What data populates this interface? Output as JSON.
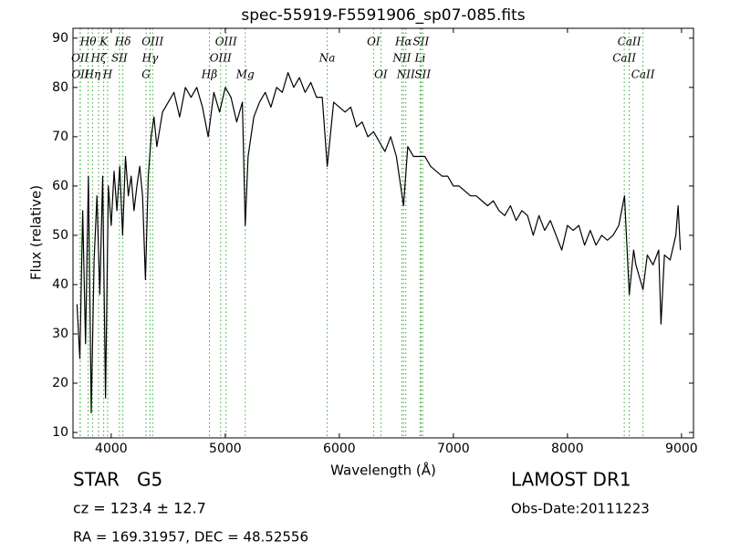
{
  "chart_data": {
    "type": "line",
    "title": "spec-55919-F5591906_sp07-085.fits",
    "x_label": "Wavelength (Å)",
    "y_label": "Flux (relative)",
    "xlim": [
      3665,
      9105
    ],
    "ylim": [
      8.9,
      92.0
    ],
    "xticks": [
      4000,
      5000,
      6000,
      7000,
      8000,
      9000
    ],
    "yticks": [
      10,
      20,
      30,
      40,
      50,
      60,
      70,
      80,
      90
    ],
    "color": "#000000",
    "line_marker_color": "#33aa33",
    "series": [
      {
        "name": "flux",
        "color": "#000000",
        "x": [
          3700,
          3725,
          3750,
          3775,
          3800,
          3825,
          3850,
          3875,
          3900,
          3925,
          3950,
          3975,
          4000,
          4025,
          4050,
          4075,
          4100,
          4125,
          4150,
          4175,
          4200,
          4225,
          4250,
          4275,
          4300,
          4325,
          4350,
          4375,
          4400,
          4450,
          4500,
          4550,
          4600,
          4650,
          4700,
          4750,
          4800,
          4850,
          4900,
          4950,
          5000,
          5050,
          5100,
          5150,
          5175,
          5200,
          5250,
          5300,
          5350,
          5400,
          5450,
          5500,
          5550,
          5600,
          5650,
          5700,
          5750,
          5800,
          5850,
          5894,
          5950,
          6000,
          6050,
          6100,
          6150,
          6200,
          6250,
          6300,
          6350,
          6400,
          6450,
          6500,
          6563,
          6600,
          6650,
          6700,
          6750,
          6800,
          6850,
          6900,
          6950,
          7000,
          7050,
          7100,
          7150,
          7200,
          7250,
          7300,
          7350,
          7400,
          7450,
          7500,
          7550,
          7600,
          7650,
          7700,
          7750,
          7800,
          7850,
          7900,
          7950,
          8000,
          8050,
          8100,
          8150,
          8200,
          8250,
          8300,
          8350,
          8400,
          8450,
          8500,
          8542,
          8580,
          8600,
          8662,
          8700,
          8750,
          8800,
          8820,
          8850,
          8900,
          8950,
          8970,
          8990
        ],
        "values": [
          36,
          25,
          55,
          28,
          62,
          14,
          45,
          58,
          38,
          62,
          17,
          60,
          52,
          63,
          55,
          64,
          50,
          66,
          58,
          62,
          55,
          60,
          64,
          58,
          41,
          62,
          70,
          74,
          68,
          75,
          77,
          79,
          74,
          80,
          78,
          80,
          76,
          70,
          79,
          75,
          80,
          78,
          73,
          77,
          52,
          66,
          74,
          77,
          79,
          76,
          80,
          79,
          83,
          80,
          82,
          79,
          81,
          78,
          78,
          64,
          77,
          76,
          75,
          76,
          72,
          73,
          70,
          71,
          69,
          67,
          70,
          66,
          56,
          68,
          66,
          66,
          66,
          64,
          63,
          62,
          62,
          60,
          60,
          59,
          58,
          58,
          57,
          56,
          57,
          55,
          54,
          56,
          53,
          55,
          54,
          50,
          54,
          51,
          53,
          50,
          47,
          52,
          51,
          52,
          48,
          51,
          48,
          50,
          49,
          50,
          52,
          58,
          38,
          47,
          44,
          39,
          46,
          44,
          47,
          32,
          46,
          45,
          50,
          56,
          47
        ]
      }
    ],
    "spectral_lines": [
      [
        {
          "label": "Hθ",
          "wavelength": 3798
        },
        {
          "label": "K",
          "wavelength": 3934
        },
        {
          "label": "Hδ",
          "wavelength": 4102
        },
        {
          "label": "OIII",
          "wavelength": 4363
        },
        {
          "label": "OIII",
          "wavelength": 5007
        },
        {
          "label": "OI",
          "wavelength": 6300
        },
        {
          "label": "Hα",
          "wavelength": 6563
        },
        {
          "label": "SII",
          "wavelength": 6716
        },
        {
          "label": "CaII",
          "wavelength": 8542
        }
      ],
      [
        {
          "label": "OII",
          "wavelength": 3727
        },
        {
          "label": "Hζ",
          "wavelength": 3889
        },
        {
          "label": "SII",
          "wavelength": 4072
        },
        {
          "label": "Hγ",
          "wavelength": 4341
        },
        {
          "label": "OIII",
          "wavelength": 4959
        },
        {
          "label": "Na",
          "wavelength": 5894
        },
        {
          "label": "NII",
          "wavelength": 6548
        },
        {
          "label": "Li",
          "wavelength": 6708
        },
        {
          "label": "CaII",
          "wavelength": 8498
        }
      ],
      [
        {
          "label": "OII",
          "wavelength": 3729
        },
        {
          "label": "Hη",
          "wavelength": 3836
        },
        {
          "label": "H",
          "wavelength": 3969
        },
        {
          "label": "G",
          "wavelength": 4305
        },
        {
          "label": "Hβ",
          "wavelength": 4861
        },
        {
          "label": "Mg",
          "wavelength": 5175
        },
        {
          "label": "OI",
          "wavelength": 6364
        },
        {
          "label": "NII",
          "wavelength": 6583
        },
        {
          "label": "SII",
          "wavelength": 6731
        },
        {
          "label": "CaII",
          "wavelength": 8662
        }
      ]
    ],
    "object_class": "STAR   G5",
    "redshift": "cz = 123.4 ± 12.7",
    "coordinates": "RA = 169.31957, DEC = 48.52556",
    "survey": "LAMOST DR1",
    "obs_date": "Obs-Date:20111223"
  }
}
